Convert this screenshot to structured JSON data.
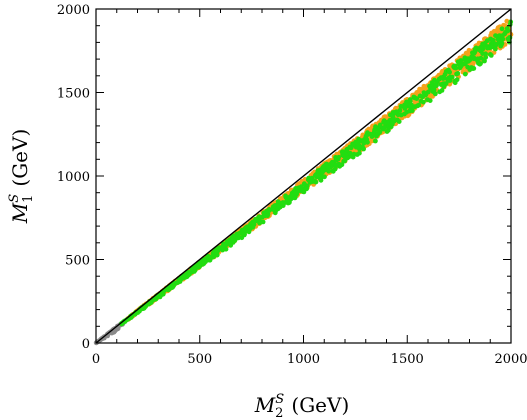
{
  "chart_data": {
    "type": "scatter",
    "xlabel": {
      "main": "M",
      "sup": "S",
      "sub": "2",
      "unit": "(GeV)"
    },
    "ylabel": {
      "main": "M",
      "sup": "S",
      "sub": "1",
      "unit": "(GeV)"
    },
    "xlim": [
      0,
      2000
    ],
    "ylim": [
      0,
      2000
    ],
    "xticks": [
      0,
      500,
      1000,
      1500,
      2000
    ],
    "yticks": [
      0,
      500,
      1000,
      1500,
      2000
    ],
    "xtick_labels": [
      "0",
      "500",
      "1000",
      "1500",
      "2000"
    ],
    "ytick_labels": [
      "0",
      "500",
      "1000",
      "1500",
      "2000"
    ],
    "grid": false,
    "reference_line": {
      "x": [
        0,
        2000
      ],
      "y": [
        0,
        2000
      ],
      "color": "#000000"
    },
    "series": [
      {
        "color": "#8a8a8a",
        "x_range": [
          0,
          130
        ],
        "ratio_range": [
          0.74,
          0.98
        ],
        "count": 70
      },
      {
        "color": "#f5a21b",
        "x_range": [
          150,
          2000
        ],
        "ratio_range": [
          0.905,
          0.975
        ],
        "count": 1400
      },
      {
        "color": "#22dd11",
        "x_range": [
          120,
          2000
        ],
        "ratio_range": [
          0.895,
          0.965
        ],
        "count": 650
      }
    ]
  }
}
